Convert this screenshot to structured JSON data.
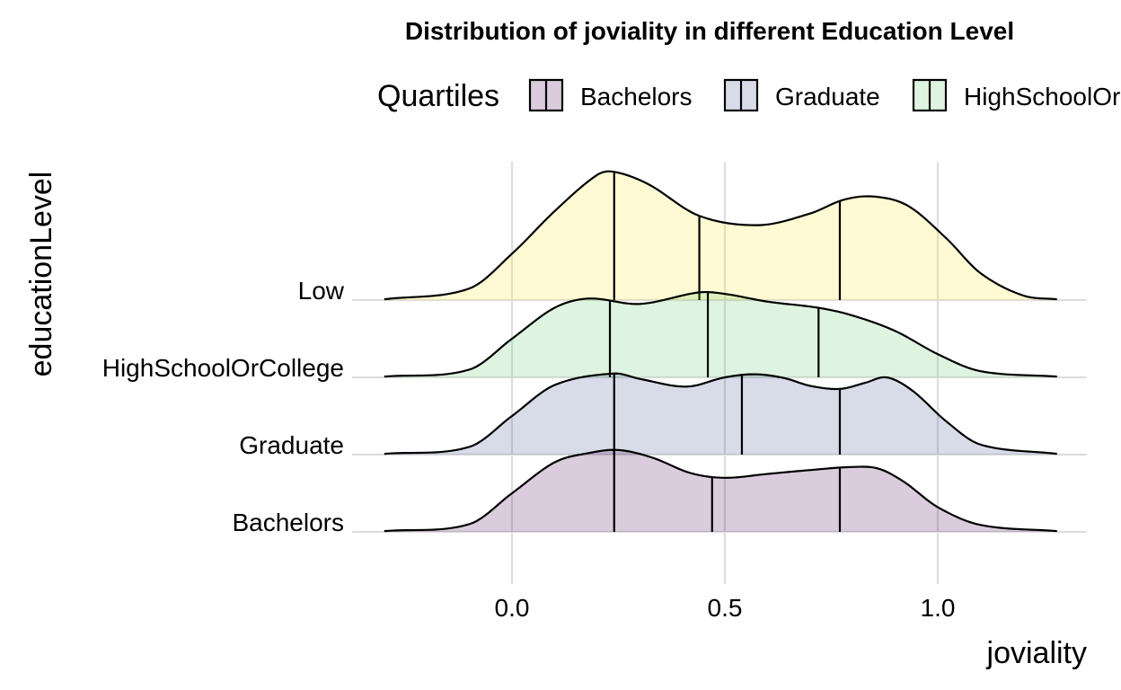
{
  "chart_data": {
    "type": "ridgeline",
    "title": "Distribution of joviality in different Education Level",
    "xlabel": "joviality",
    "ylabel": "educationLevel",
    "xlim": [
      -0.33,
      1.28
    ],
    "x_ticks": [
      {
        "value": 0.0,
        "label": "0.0"
      },
      {
        "value": 0.5,
        "label": "0.5"
      },
      {
        "value": 1.0,
        "label": "1.0"
      }
    ],
    "grid": true,
    "legend": {
      "title": "Quartiles",
      "position": "top",
      "entries": [
        "Bachelors",
        "Graduate",
        "HighSchoolOrCollege"
      ]
    },
    "series": [
      {
        "name": "Bachelors",
        "color": "#440154",
        "quartiles": [
          0.24,
          0.47,
          0.77
        ],
        "density": [
          [
            -0.3,
            0.01
          ],
          [
            -0.1,
            0.1
          ],
          [
            0.0,
            0.5
          ],
          [
            0.1,
            0.9
          ],
          [
            0.18,
            1.02
          ],
          [
            0.25,
            1.06
          ],
          [
            0.33,
            0.96
          ],
          [
            0.42,
            0.76
          ],
          [
            0.5,
            0.7
          ],
          [
            0.6,
            0.75
          ],
          [
            0.7,
            0.8
          ],
          [
            0.8,
            0.84
          ],
          [
            0.86,
            0.82
          ],
          [
            0.92,
            0.65
          ],
          [
            1.0,
            0.32
          ],
          [
            1.1,
            0.09
          ],
          [
            1.28,
            0.01
          ]
        ]
      },
      {
        "name": "Graduate",
        "color": "#3b528b",
        "quartiles": [
          0.24,
          0.54,
          0.77
        ],
        "density": [
          [
            -0.3,
            0.01
          ],
          [
            -0.1,
            0.1
          ],
          [
            0.0,
            0.5
          ],
          [
            0.1,
            0.9
          ],
          [
            0.24,
            1.05
          ],
          [
            0.3,
            0.98
          ],
          [
            0.41,
            0.88
          ],
          [
            0.5,
            1.0
          ],
          [
            0.57,
            1.04
          ],
          [
            0.64,
            0.99
          ],
          [
            0.7,
            0.89
          ],
          [
            0.77,
            0.85
          ],
          [
            0.83,
            0.93
          ],
          [
            0.88,
            1.0
          ],
          [
            0.94,
            0.83
          ],
          [
            1.02,
            0.43
          ],
          [
            1.1,
            0.13
          ],
          [
            1.28,
            0.01
          ]
        ]
      },
      {
        "name": "HighSchoolOrCollege",
        "color": "#5ec962",
        "quartiles": [
          0.23,
          0.46,
          0.72
        ],
        "density": [
          [
            -0.3,
            0.01
          ],
          [
            -0.1,
            0.1
          ],
          [
            0.0,
            0.5
          ],
          [
            0.1,
            0.9
          ],
          [
            0.18,
            1.02
          ],
          [
            0.3,
            0.95
          ],
          [
            0.44,
            1.1
          ],
          [
            0.5,
            1.08
          ],
          [
            0.6,
            0.98
          ],
          [
            0.72,
            0.9
          ],
          [
            0.8,
            0.8
          ],
          [
            0.9,
            0.6
          ],
          [
            1.0,
            0.3
          ],
          [
            1.1,
            0.08
          ],
          [
            1.28,
            0.01
          ]
        ]
      },
      {
        "name": "Low",
        "color": "#fde725",
        "quartiles": [
          0.24,
          0.44,
          0.77
        ],
        "density": [
          [
            -0.3,
            0.01
          ],
          [
            -0.1,
            0.15
          ],
          [
            0.0,
            0.6
          ],
          [
            0.1,
            1.15
          ],
          [
            0.2,
            1.62
          ],
          [
            0.24,
            1.66
          ],
          [
            0.32,
            1.5
          ],
          [
            0.44,
            1.09
          ],
          [
            0.58,
            0.97
          ],
          [
            0.7,
            1.12
          ],
          [
            0.78,
            1.3
          ],
          [
            0.85,
            1.34
          ],
          [
            0.93,
            1.22
          ],
          [
            1.02,
            0.8
          ],
          [
            1.1,
            0.35
          ],
          [
            1.2,
            0.06
          ],
          [
            1.28,
            0.01
          ]
        ]
      }
    ]
  }
}
